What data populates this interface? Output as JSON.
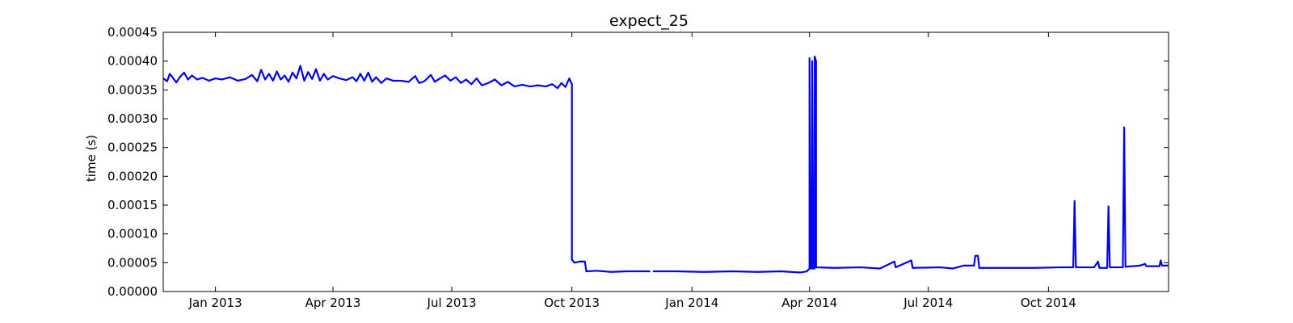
{
  "chart_data": {
    "type": "line",
    "title": "expect_25",
    "xlabel": "",
    "ylabel": "time (s)",
    "xlim": [
      "2012-11-22",
      "2015-01-01"
    ],
    "ylim": [
      0,
      0.00045
    ],
    "grid": false,
    "legend": "none",
    "x_ticks": [
      {
        "date": "2013-01-01",
        "label": "Jan 2013"
      },
      {
        "date": "2013-04-01",
        "label": "Apr 2013"
      },
      {
        "date": "2013-07-01",
        "label": "Jul 2013"
      },
      {
        "date": "2013-10-01",
        "label": "Oct 2013"
      },
      {
        "date": "2014-01-01",
        "label": "Jan 2014"
      },
      {
        "date": "2014-04-01",
        "label": "Apr 2014"
      },
      {
        "date": "2014-07-01",
        "label": "Jul 2014"
      },
      {
        "date": "2014-10-01",
        "label": "Oct 2014"
      }
    ],
    "y_ticks": [
      {
        "value": 0.0,
        "label": "0.00000"
      },
      {
        "value": 5e-05,
        "label": "0.00005"
      },
      {
        "value": 0.0001,
        "label": "0.00010"
      },
      {
        "value": 0.00015,
        "label": "0.00015"
      },
      {
        "value": 0.0002,
        "label": "0.00020"
      },
      {
        "value": 0.00025,
        "label": "0.00025"
      },
      {
        "value": 0.0003,
        "label": "0.00030"
      },
      {
        "value": 0.00035,
        "label": "0.00035"
      },
      {
        "value": 0.0004,
        "label": "0.00040"
      },
      {
        "value": 0.00045,
        "label": "0.00045"
      }
    ],
    "series": [
      {
        "color": "#0000ff",
        "points": [
          [
            "2012-11-22",
            0.00037
          ],
          [
            "2012-11-25",
            0.000365
          ],
          [
            "2012-11-27",
            0.000378
          ],
          [
            "2012-11-29",
            0.000372
          ],
          [
            "2012-12-02",
            0.000363
          ],
          [
            "2012-12-05",
            0.000373
          ],
          [
            "2012-12-08",
            0.00038
          ],
          [
            "2012-12-11",
            0.000368
          ],
          [
            "2012-12-14",
            0.000375
          ],
          [
            "2012-12-18",
            0.000368
          ],
          [
            "2012-12-22",
            0.000371
          ],
          [
            "2012-12-27",
            0.000366
          ],
          [
            "2013-01-01",
            0.00037
          ],
          [
            "2013-01-06",
            0.000368
          ],
          [
            "2013-01-12",
            0.000372
          ],
          [
            "2013-01-18",
            0.000366
          ],
          [
            "2013-01-24",
            0.000369
          ],
          [
            "2013-01-29",
            0.000376
          ],
          [
            "2013-02-02",
            0.000365
          ],
          [
            "2013-02-05",
            0.000385
          ],
          [
            "2013-02-08",
            0.000368
          ],
          [
            "2013-02-11",
            0.000378
          ],
          [
            "2013-02-14",
            0.000366
          ],
          [
            "2013-02-17",
            0.000382
          ],
          [
            "2013-02-20",
            0.000368
          ],
          [
            "2013-02-23",
            0.000375
          ],
          [
            "2013-02-26",
            0.000364
          ],
          [
            "2013-03-01",
            0.00038
          ],
          [
            "2013-03-04",
            0.00037
          ],
          [
            "2013-03-07",
            0.000392
          ],
          [
            "2013-03-10",
            0.000366
          ],
          [
            "2013-03-13",
            0.000381
          ],
          [
            "2013-03-16",
            0.000369
          ],
          [
            "2013-03-19",
            0.000386
          ],
          [
            "2013-03-22",
            0.000366
          ],
          [
            "2013-03-25",
            0.000378
          ],
          [
            "2013-03-28",
            0.000368
          ],
          [
            "2013-04-01",
            0.000374
          ],
          [
            "2013-04-06",
            0.00037
          ],
          [
            "2013-04-11",
            0.000367
          ],
          [
            "2013-04-16",
            0.000372
          ],
          [
            "2013-04-19",
            0.000365
          ],
          [
            "2013-04-22",
            0.000378
          ],
          [
            "2013-04-25",
            0.000366
          ],
          [
            "2013-04-28",
            0.00038
          ],
          [
            "2013-05-01",
            0.000364
          ],
          [
            "2013-05-04",
            0.000372
          ],
          [
            "2013-05-08",
            0.000362
          ],
          [
            "2013-05-12",
            0.00037
          ],
          [
            "2013-05-17",
            0.000366
          ],
          [
            "2013-05-23",
            0.000366
          ],
          [
            "2013-05-29",
            0.000364
          ],
          [
            "2013-06-03",
            0.000374
          ],
          [
            "2013-06-06",
            0.000362
          ],
          [
            "2013-06-10",
            0.000365
          ],
          [
            "2013-06-15",
            0.000376
          ],
          [
            "2013-06-18",
            0.000364
          ],
          [
            "2013-06-22",
            0.00037
          ],
          [
            "2013-06-26",
            0.000375
          ],
          [
            "2013-06-30",
            0.000366
          ],
          [
            "2013-07-04",
            0.000372
          ],
          [
            "2013-07-08",
            0.000362
          ],
          [
            "2013-07-12",
            0.000368
          ],
          [
            "2013-07-16",
            0.00036
          ],
          [
            "2013-07-20",
            0.00037
          ],
          [
            "2013-07-24",
            0.000358
          ],
          [
            "2013-07-29",
            0.000362
          ],
          [
            "2013-08-03",
            0.000368
          ],
          [
            "2013-08-08",
            0.000358
          ],
          [
            "2013-08-13",
            0.000364
          ],
          [
            "2013-08-18",
            0.000356
          ],
          [
            "2013-08-24",
            0.000359
          ],
          [
            "2013-08-30",
            0.000356
          ],
          [
            "2013-09-05",
            0.000358
          ],
          [
            "2013-09-11",
            0.000356
          ],
          [
            "2013-09-16",
            0.00036
          ],
          [
            "2013-09-20",
            0.000353
          ],
          [
            "2013-09-23",
            0.000362
          ],
          [
            "2013-09-26",
            0.000355
          ],
          [
            "2013-09-29",
            0.00037
          ],
          [
            "2013-10-01",
            0.00036
          ],
          [
            "2013-10-01",
            5.5e-05
          ],
          [
            "2013-10-03",
            5e-05
          ],
          [
            "2013-10-07",
            5.2e-05
          ],
          [
            "2013-10-11",
            5.2e-05
          ],
          [
            "2013-10-12",
            3.5e-05
          ],
          [
            "2013-10-20",
            3.6e-05
          ],
          [
            "2013-10-31",
            3.4e-05
          ],
          [
            "2013-11-12",
            3.5e-05
          ],
          [
            "2013-11-24",
            3.5e-05
          ],
          [
            "2013-11-30",
            3.5e-05
          ],
          [
            null,
            null
          ],
          [
            "2013-12-02",
            3.5e-05
          ],
          [
            "2013-12-20",
            3.5e-05
          ],
          [
            "2014-01-10",
            3.4e-05
          ],
          [
            "2014-02-01",
            3.5e-05
          ],
          [
            "2014-02-20",
            3.4e-05
          ],
          [
            "2014-03-10",
            3.5e-05
          ],
          [
            "2014-03-25",
            3.3e-05
          ],
          [
            "2014-03-30",
            3.5e-05
          ],
          [
            "2014-04-01",
            4e-05
          ],
          [
            "2014-04-01",
            0.000405
          ],
          [
            "2014-04-02",
            4e-05
          ],
          [
            "2014-04-03",
            4e-05
          ],
          [
            "2014-04-03",
            0.0004
          ],
          [
            "2014-04-04",
            4e-05
          ],
          [
            "2014-04-05",
            4e-05
          ],
          [
            "2014-04-05",
            0.000408
          ],
          [
            "2014-04-06",
            0.0004
          ],
          [
            "2014-04-06",
            4.2e-05
          ],
          [
            "2014-04-20",
            4.1e-05
          ],
          [
            "2014-05-10",
            4.2e-05
          ],
          [
            "2014-05-25",
            4e-05
          ],
          [
            "2014-06-05",
            5.2e-05
          ],
          [
            "2014-06-06",
            4.2e-05
          ],
          [
            "2014-06-18",
            5.4e-05
          ],
          [
            "2014-06-19",
            4.1e-05
          ],
          [
            "2014-07-10",
            4.2e-05
          ],
          [
            "2014-07-20",
            4e-05
          ],
          [
            "2014-07-28",
            4.5e-05
          ],
          [
            "2014-08-05",
            4.5e-05
          ],
          [
            "2014-08-06",
            6.2e-05
          ],
          [
            "2014-08-08",
            6.2e-05
          ],
          [
            "2014-08-09",
            4.1e-05
          ],
          [
            "2014-09-01",
            4.1e-05
          ],
          [
            "2014-09-20",
            4.1e-05
          ],
          [
            "2014-10-10",
            4.2e-05
          ],
          [
            "2014-10-20",
            4.2e-05
          ],
          [
            "2014-10-21",
            0.000157
          ],
          [
            "2014-10-22",
            4.2e-05
          ],
          [
            "2014-11-05",
            4.2e-05
          ],
          [
            "2014-11-08",
            5.2e-05
          ],
          [
            "2014-11-09",
            4.1e-05
          ],
          [
            "2014-11-15",
            4.1e-05
          ],
          [
            "2014-11-16",
            0.000148
          ],
          [
            "2014-11-17",
            4.2e-05
          ],
          [
            "2014-11-27",
            4.2e-05
          ],
          [
            "2014-11-28",
            0.000285
          ],
          [
            "2014-11-29",
            4.3e-05
          ],
          [
            "2014-12-10",
            4.5e-05
          ],
          [
            "2014-12-14",
            4.8e-05
          ],
          [
            "2014-12-15",
            4.4e-05
          ],
          [
            "2014-12-25",
            4.4e-05
          ],
          [
            "2014-12-26",
            5.4e-05
          ],
          [
            "2014-12-27",
            4.5e-05
          ],
          [
            "2015-01-01",
            4.5e-05
          ]
        ]
      }
    ]
  }
}
